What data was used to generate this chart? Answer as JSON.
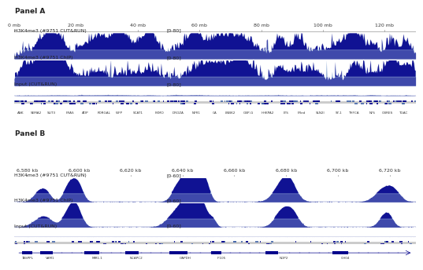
{
  "bg_color": "#ffffff",
  "panel_a_label": "Panel A",
  "panel_b_label": "Panel B",
  "panel_a": {
    "xmin": 0,
    "xmax": 130,
    "xticks": [
      0,
      20,
      40,
      60,
      80,
      100,
      120
    ],
    "xticklabels": [
      "0 mb",
      "20 mb",
      "40 mb",
      "60 mb",
      "80 mb",
      "100 mb",
      "120 mb"
    ],
    "tracks": [
      {
        "label": "H3K4me3 (#9751 CUT&RUN)",
        "range": "[0-80]"
      },
      {
        "label": "H3K4me3 (#9751 ChIP)",
        "range": "[0-80]"
      },
      {
        "label": "Input (CUT&RUN)",
        "range": "[0-80]"
      }
    ]
  },
  "panel_b": {
    "xmin": 6575,
    "xmax": 6730,
    "xticks": [
      6580,
      6600,
      6620,
      6640,
      6660,
      6680,
      6700,
      6720
    ],
    "xticklabels": [
      "6,580 kb",
      "6,600 kb",
      "6,620 kb",
      "6,640 kb",
      "6,660 kb",
      "6,680 kb",
      "6,700 kb",
      "6,720 kb"
    ],
    "tracks": [
      {
        "label": "H3K4me3 (#9751 CUT&RUN)",
        "range": "[0-60]"
      },
      {
        "label": "H3K4me3 (#9751 ChIP)",
        "range": "[0-60]"
      },
      {
        "label": "Input (CUT&RUN)",
        "range": "[0-60]"
      }
    ]
  },
  "track_color_dark": "#00008B",
  "track_color_light": "#7799CC",
  "genome_bar_color": "#00008B",
  "genome_bar_bg": "#BBCCDD",
  "label_fontsize": 4.5,
  "axis_fontsize": 4.5,
  "panel_label_fontsize": 6.5,
  "panel_b_gene_labels": [
    "TASPPL",
    "VAM1",
    "MIR1.1",
    "NCAPC2",
    "GAPDH",
    "IF105",
    "NOP2",
    "GH04"
  ]
}
